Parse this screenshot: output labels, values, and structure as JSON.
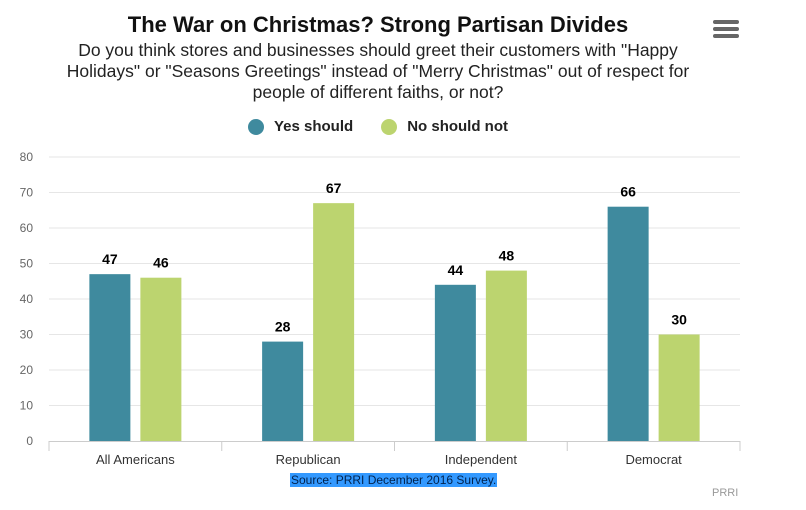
{
  "colors": {
    "yes": "#3f8a9e",
    "no": "#bcd46f",
    "grid": "#e6e6e6",
    "axis": "#cccccc"
  },
  "icons": {
    "menu": "hamburger-menu-icon"
  },
  "chart_data": {
    "type": "bar",
    "title": "The War on Christmas? Strong Partisan Divides",
    "subtitle": "Do you think stores and businesses should greet their customers with \"Happy Holidays\" or \"Seasons Greetings\" instead of \"Merry Christmas\" out of respect for people of different faiths, or not?",
    "categories": [
      "All Americans",
      "Republican",
      "Independent",
      "Democrat"
    ],
    "series": [
      {
        "name": "Yes should",
        "values": [
          47,
          28,
          44,
          66
        ]
      },
      {
        "name": "No should not",
        "values": [
          46,
          67,
          48,
          30
        ]
      }
    ],
    "ylim": [
      0,
      80
    ],
    "yticks": [
      0,
      10,
      20,
      30,
      40,
      50,
      60,
      70,
      80
    ],
    "grid": true,
    "legend_position": "top-center",
    "source": "Source: PRRI December 2016 Survey.",
    "credits": "PRRI"
  }
}
